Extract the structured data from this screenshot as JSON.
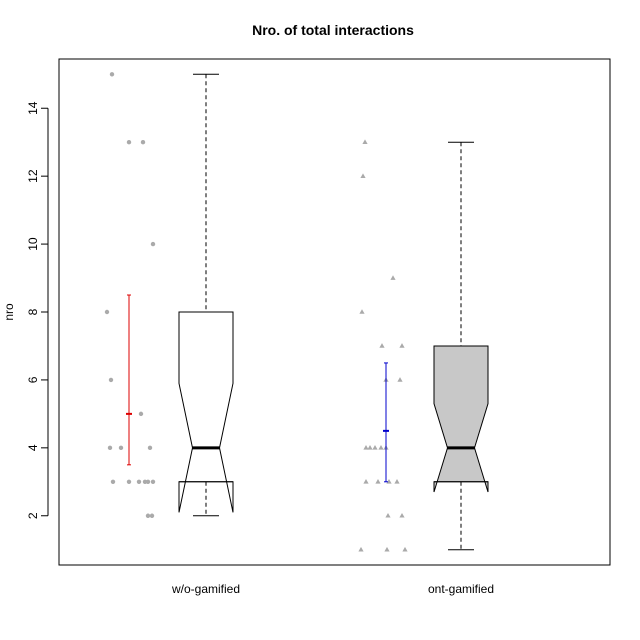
{
  "chart_data": {
    "type": "boxplot",
    "title": "Nro. of total interactions",
    "xlabel": "",
    "ylabel": "nro",
    "ylim": [
      0.55,
      15.45
    ],
    "yticks": [
      2,
      4,
      6,
      8,
      10,
      12,
      14
    ],
    "categories": [
      "w/o-gamified",
      "ont-gamified"
    ],
    "boxes": [
      {
        "name": "w/o-gamified",
        "fill": "#ffffff",
        "notched": true,
        "whisker_low": 2,
        "q1": 3,
        "median": 4,
        "q3": 8,
        "whisker_high": 15,
        "notch_low": 2.1,
        "notch_high": 5.9
      },
      {
        "name": "ont-gamified",
        "fill": "#c8c8c8",
        "notched": true,
        "whisker_low": 1,
        "q1": 3,
        "median": 4,
        "q3": 7,
        "whisker_high": 13,
        "notch_low": 2.7,
        "notch_high": 5.3
      }
    ],
    "points": [
      {
        "group": "w/o-gamified",
        "marker": "circle",
        "color": "#aaaaaa",
        "values": [
          15,
          13,
          13,
          10,
          8,
          6,
          5,
          4,
          4,
          4,
          3,
          3,
          3,
          3,
          3,
          3,
          2,
          2
        ]
      },
      {
        "group": "ont-gamified",
        "marker": "triangle",
        "color": "#aaaaaa",
        "values": [
          13,
          12,
          9,
          8,
          7,
          7,
          6,
          6,
          4,
          4,
          4,
          4,
          4,
          3,
          3,
          3,
          3,
          2,
          2,
          1,
          1,
          1
        ]
      }
    ],
    "intervals": [
      {
        "group": "w/o-gamified",
        "low": 3.5,
        "center": 5,
        "high": 8.5,
        "color": "#dd0000"
      },
      {
        "group": "ont-gamified",
        "low": 3,
        "center": 4.5,
        "high": 6.5,
        "color": "#0000cc"
      }
    ]
  }
}
